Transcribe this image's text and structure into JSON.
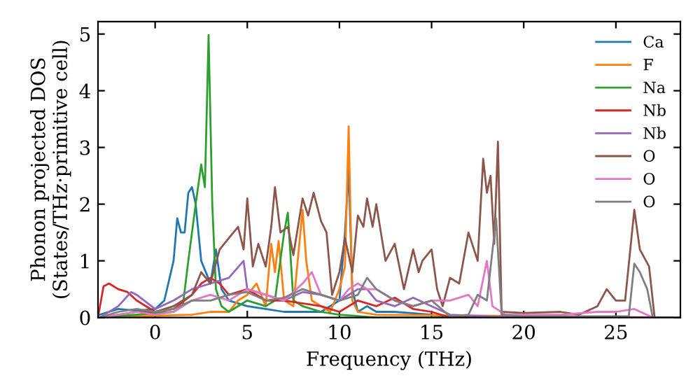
{
  "chart_data": {
    "type": "line",
    "xlabel": "Frequency (THz)",
    "ylabel": "Phonon projected DOS\n(States/THz·primitive cell)",
    "xlim": [
      -3.1,
      28.5
    ],
    "ylim": [
      0,
      5.22
    ],
    "xticks": [
      0,
      5,
      10,
      15,
      20,
      25
    ],
    "yticks": [
      0,
      1,
      2,
      3,
      4,
      5
    ],
    "grid": false,
    "legend": "top right",
    "series": [
      {
        "name": "Ca",
        "color": "#1f77b4",
        "x": [
          -3,
          -2,
          -1,
          0,
          0.5,
          1,
          1.2,
          1.4,
          1.6,
          1.8,
          2.0,
          2.2,
          2.5,
          3,
          3.3,
          3.6,
          4,
          5,
          6,
          7,
          8,
          9,
          10,
          10.3,
          10.5,
          10.7,
          11,
          11.5,
          12,
          13,
          15,
          16,
          28.5
        ],
        "values": [
          0.05,
          0.15,
          0.12,
          0.15,
          0.3,
          1.0,
          1.75,
          1.5,
          1.5,
          2.2,
          2.3,
          2.0,
          1.0,
          0.6,
          1.2,
          0.5,
          0.3,
          0.2,
          0.15,
          0.1,
          0.1,
          0.1,
          0.3,
          1.5,
          2.6,
          0.5,
          0.1,
          0.2,
          0.1,
          0.1,
          0.05,
          0,
          0
        ]
      },
      {
        "name": "F",
        "color": "#ff7f0e",
        "x": [
          -3,
          2,
          3,
          4,
          4.5,
          5,
          5.5,
          6,
          6.3,
          6.5,
          6.7,
          7,
          7.5,
          8,
          8.2,
          8.5,
          9,
          9.5,
          10,
          10.3,
          10.5,
          10.7,
          11,
          12,
          28.5
        ],
        "values": [
          0,
          0.05,
          0.1,
          0.1,
          0.3,
          0.4,
          0.6,
          0.2,
          1.3,
          0.8,
          1.35,
          0.3,
          0.2,
          1.9,
          1.0,
          0.3,
          0.2,
          0.1,
          0.5,
          0.9,
          3.37,
          0.3,
          0.1,
          0.05,
          0
        ]
      },
      {
        "name": "Na",
        "color": "#2ca02c",
        "x": [
          -3,
          1,
          1.5,
          1.8,
          2.2,
          2.5,
          2.7,
          2.9,
          3.1,
          3.3,
          3.6,
          4,
          5,
          6,
          6.5,
          7,
          7.2,
          7.5,
          8,
          9,
          10,
          12,
          28.5
        ],
        "values": [
          0,
          0.1,
          0.2,
          1.0,
          2.0,
          2.7,
          2.3,
          4.98,
          2.0,
          0.5,
          0.2,
          0.1,
          0.3,
          0.2,
          0.3,
          1.5,
          1.85,
          0.3,
          0.2,
          0.1,
          0.05,
          0,
          0
        ]
      },
      {
        "name": "Nb",
        "color": "#d62728",
        "x": [
          -3.1,
          -2.8,
          -2.5,
          -2,
          -1.5,
          -1,
          0,
          1,
          2,
          2.5,
          3,
          3.5,
          4,
          5,
          6,
          7,
          8,
          9,
          10,
          11,
          12,
          13,
          14,
          15,
          16,
          28.5
        ],
        "values": [
          0,
          0.55,
          0.6,
          0.5,
          0.45,
          0.3,
          0.1,
          0.15,
          0.4,
          0.6,
          0.7,
          0.6,
          0.4,
          0.5,
          0.3,
          0.3,
          0.25,
          0.2,
          0.1,
          0.3,
          0.2,
          0.35,
          0.15,
          0.1,
          0,
          0
        ]
      },
      {
        "name": "Nb",
        "color": "#9467bd",
        "x": [
          -3,
          -2,
          -1.3,
          -1,
          0,
          1,
          2,
          3,
          4,
          4.8,
          5,
          6,
          7,
          8,
          9,
          10,
          11,
          11.5,
          12,
          13,
          14,
          15,
          16,
          18,
          20,
          28.5
        ],
        "values": [
          0,
          0.2,
          0.45,
          0.4,
          0.15,
          0.3,
          0.5,
          0.6,
          0.7,
          1.0,
          0.5,
          0.4,
          0.3,
          0.45,
          0.4,
          0.3,
          0.5,
          0.5,
          0.3,
          0.2,
          0.35,
          0.2,
          0.05,
          0.02,
          0,
          0
        ]
      },
      {
        "name": "O",
        "color": "#8c564b",
        "x": [
          -3,
          -2,
          -1,
          0,
          1,
          2,
          2.5,
          3,
          3.5,
          4,
          4.5,
          4.8,
          5,
          5.3,
          5.6,
          6,
          6.3,
          6.5,
          6.8,
          7.2,
          7.5,
          8,
          8.3,
          8.6,
          9,
          9.3,
          9.6,
          10,
          10.3,
          10.7,
          11,
          11.3,
          11.5,
          11.8,
          12,
          12.5,
          13,
          13.5,
          14,
          14.3,
          14.5,
          15,
          15.3,
          15.6,
          16,
          16.5,
          17,
          17.5,
          17.8,
          18,
          18.2,
          18.4,
          18.6,
          18.8,
          20,
          22,
          23,
          24,
          24.5,
          25,
          25.5,
          26,
          26.3,
          26.8,
          27.1,
          28.5
        ],
        "values": [
          0,
          0.05,
          0.1,
          0.1,
          0.2,
          0.4,
          0.8,
          0.6,
          1.2,
          1.4,
          1.6,
          1.2,
          2.1,
          0.9,
          1.3,
          0.9,
          1.6,
          2.3,
          1.5,
          1.6,
          1.1,
          2.1,
          1.8,
          2.2,
          1.7,
          1.5,
          0.4,
          0.8,
          1.4,
          0.8,
          1.8,
          1.6,
          2.1,
          1.6,
          2.0,
          1.0,
          1.3,
          0.5,
          1.2,
          0.8,
          1.0,
          1.2,
          0.5,
          0.2,
          0.7,
          0.6,
          1.5,
          1.0,
          2.8,
          2.2,
          2.5,
          1.3,
          3.1,
          0.1,
          0.08,
          0.1,
          0.05,
          0.2,
          0.5,
          0.3,
          0.3,
          1.9,
          1.2,
          0.9,
          0,
          0
        ]
      },
      {
        "name": "O",
        "color": "#e377c2",
        "x": [
          -3,
          -1,
          0,
          1,
          2,
          3,
          4,
          5,
          6,
          7,
          8,
          8.5,
          9,
          10,
          10.5,
          11,
          11.5,
          12,
          13,
          14,
          15,
          15.6,
          16,
          17,
          17.5,
          18,
          18.3,
          19,
          22,
          24,
          25,
          26,
          27,
          28.5
        ],
        "values": [
          0,
          0.1,
          0.05,
          0.1,
          0.3,
          0.4,
          0.3,
          0.5,
          0.4,
          0.3,
          0.6,
          0.8,
          0.4,
          0.3,
          0.5,
          0.6,
          0.5,
          0.5,
          0.3,
          0.2,
          0.3,
          0.3,
          0.3,
          0.4,
          0.2,
          1.0,
          0.2,
          0.05,
          0.05,
          0.1,
          0.1,
          0.15,
          0,
          0
        ]
      },
      {
        "name": "O",
        "color": "#7f7f7f",
        "x": [
          -3,
          -2,
          -1,
          0,
          1,
          2,
          3,
          4,
          5,
          6,
          7,
          8,
          9,
          10,
          11,
          11.5,
          12,
          13,
          14,
          15,
          16,
          17,
          17.5,
          18,
          18.5,
          18.8,
          20,
          25,
          25.7,
          26,
          26.3,
          26.7,
          27,
          28.5
        ],
        "values": [
          0,
          0.1,
          0.15,
          0.1,
          0.15,
          0.3,
          0.3,
          0.4,
          0.45,
          0.3,
          0.35,
          0.5,
          0.4,
          0.3,
          0.4,
          0.7,
          0.5,
          0.3,
          0.2,
          0.3,
          0.02,
          0.05,
          0.4,
          0.3,
          1.75,
          0.05,
          0.02,
          0.02,
          0.02,
          0.95,
          0.8,
          0.5,
          0,
          0
        ]
      }
    ]
  }
}
